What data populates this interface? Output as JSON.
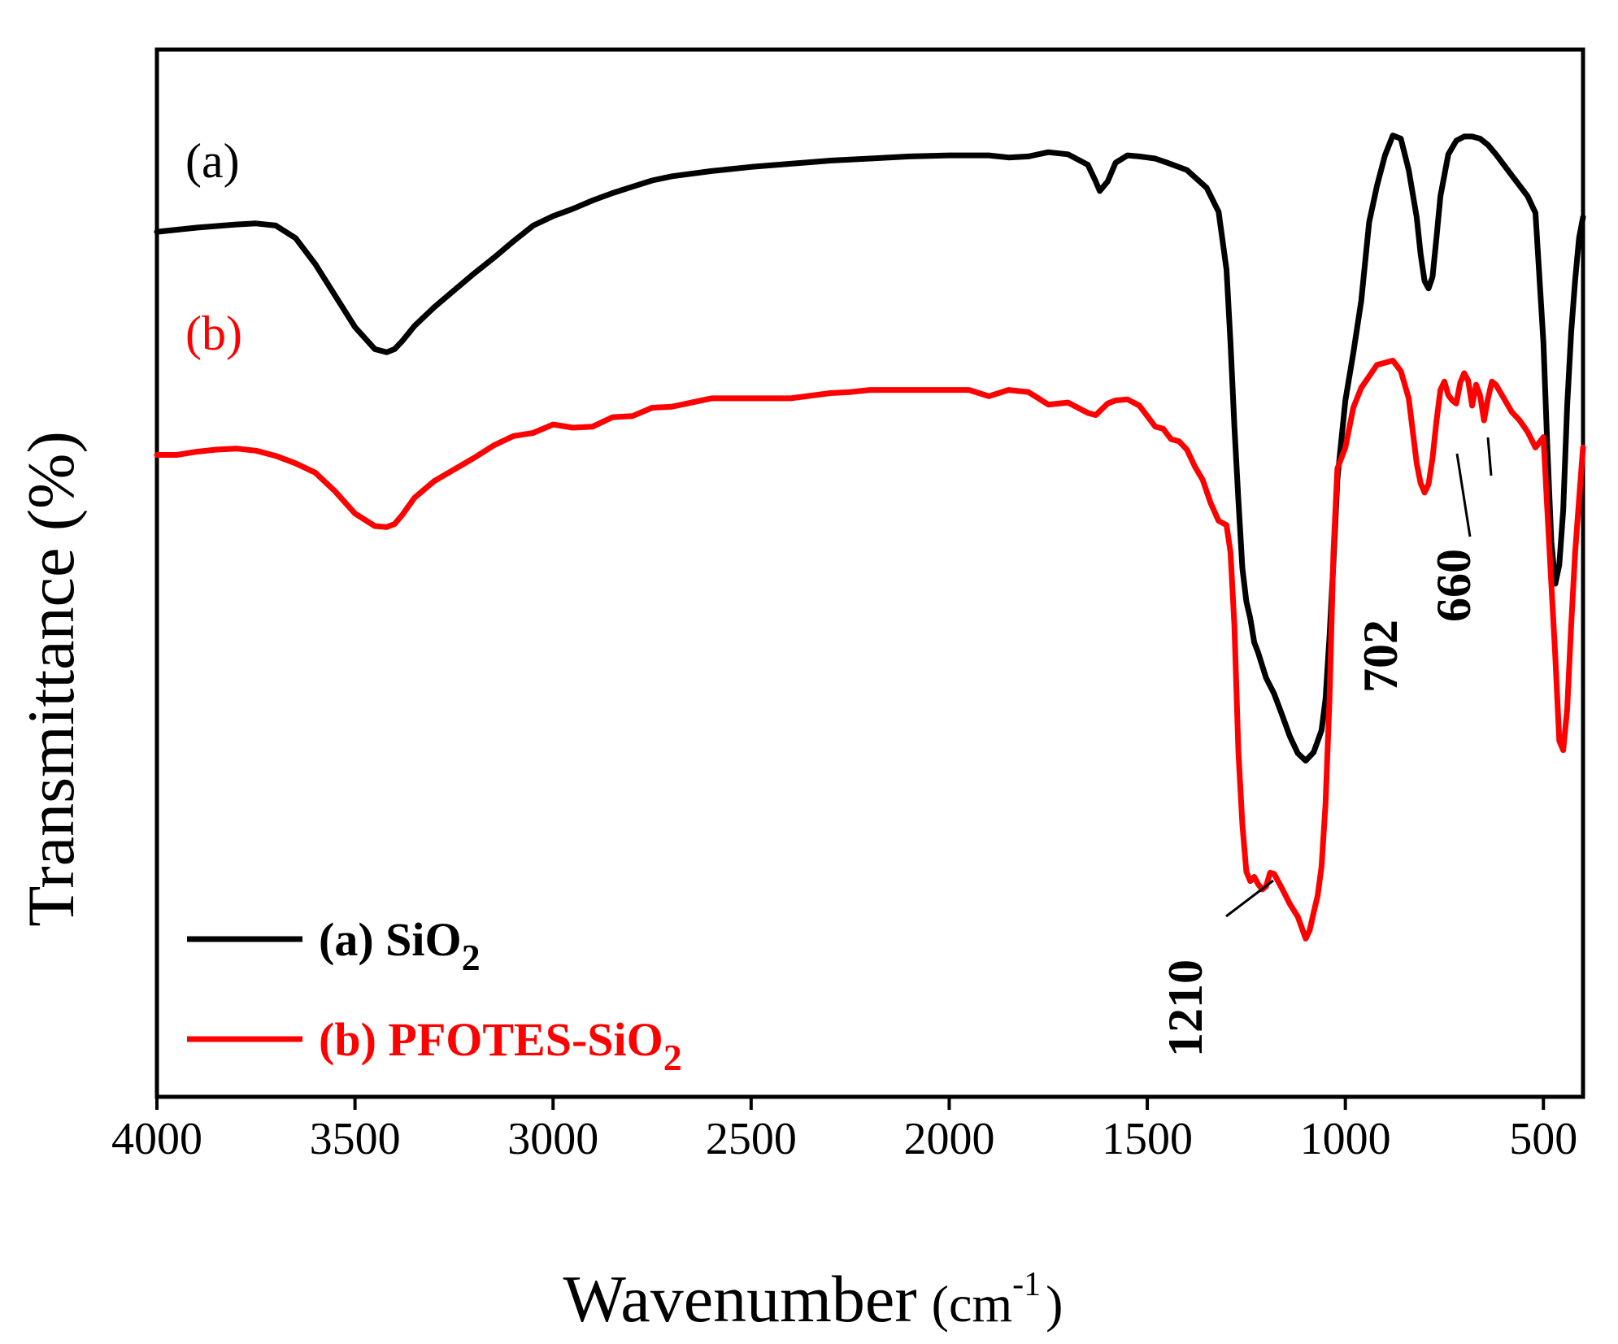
{
  "chart_data": {
    "type": "line",
    "xlabel": "Wavenumber",
    "xlabel_unit_base": "(cm",
    "xlabel_unit_exp": "-1",
    "xlabel_unit_close": ")",
    "ylabel": "Transmittance (%)",
    "xlim": [
      4000,
      400
    ],
    "x_reversed": true,
    "y_ticks_shown": false,
    "ylim": [
      0,
      100
    ],
    "x_ticks": [
      4000,
      3500,
      3000,
      2500,
      2000,
      1500,
      1000,
      500
    ],
    "x_tick_labels": [
      "4000",
      "3500",
      "3000",
      "2500",
      "2000",
      "1500",
      "1000",
      "500"
    ],
    "grid": false,
    "legend_position": "bottom-left",
    "curve_tags": [
      {
        "text": "(a)",
        "color": "#000000",
        "series": 0
      },
      {
        "text": "(b)",
        "color": "#ff0000",
        "series": 1
      }
    ],
    "peak_labels": [
      {
        "text": "1210",
        "x": 1210
      },
      {
        "text": "702",
        "x": 702
      },
      {
        "text": "660",
        "x": 660
      }
    ],
    "series": [
      {
        "name": "(a) SiO",
        "name_sub": "2",
        "color": "#000000",
        "x": [
          4000,
          3900,
          3800,
          3750,
          3700,
          3650,
          3600,
          3550,
          3500,
          3450,
          3420,
          3400,
          3380,
          3350,
          3300,
          3250,
          3200,
          3150,
          3100,
          3050,
          3000,
          2950,
          2900,
          2850,
          2800,
          2750,
          2700,
          2600,
          2500,
          2400,
          2300,
          2200,
          2100,
          2000,
          1950,
          1900,
          1850,
          1800,
          1750,
          1700,
          1650,
          1630,
          1620,
          1600,
          1580,
          1550,
          1520,
          1500,
          1480,
          1450,
          1400,
          1350,
          1320,
          1300,
          1290,
          1280,
          1270,
          1260,
          1250,
          1240,
          1230,
          1220,
          1200,
          1180,
          1160,
          1140,
          1120,
          1100,
          1080,
          1060,
          1050,
          1040,
          1030,
          1020,
          1000,
          980,
          960,
          940,
          920,
          900,
          880,
          860,
          840,
          820,
          810,
          800,
          790,
          780,
          770,
          760,
          740,
          720,
          700,
          680,
          660,
          640,
          620,
          600,
          580,
          560,
          540,
          520,
          500,
          490,
          480,
          470,
          460,
          450,
          440,
          430,
          420,
          410,
          400
        ],
        "y": [
          82.6,
          83.0,
          83.3,
          83.4,
          83.2,
          82.0,
          79.5,
          76.5,
          73.5,
          71.4,
          71.1,
          71.4,
          72.2,
          73.6,
          75.4,
          77.0,
          78.6,
          80.1,
          81.7,
          83.2,
          84.1,
          84.8,
          85.6,
          86.3,
          86.9,
          87.5,
          87.9,
          88.4,
          88.8,
          89.1,
          89.4,
          89.6,
          89.8,
          89.9,
          89.9,
          89.9,
          89.7,
          89.8,
          90.2,
          90.0,
          89.0,
          87.4,
          86.5,
          87.4,
          89.2,
          89.9,
          89.8,
          89.7,
          89.6,
          89.2,
          88.5,
          86.8,
          84.5,
          79.0,
          72.0,
          64.0,
          57.0,
          50.5,
          47.3,
          45.7,
          43.4,
          42.4,
          40.0,
          38.5,
          36.5,
          34.4,
          32.8,
          32.1,
          32.9,
          35.0,
          38.0,
          44.0,
          51.0,
          59.0,
          66.5,
          71.0,
          76.0,
          83.5,
          87.0,
          89.9,
          91.8,
          91.5,
          88.5,
          84.0,
          80.5,
          77.9,
          77.2,
          78.3,
          82.0,
          86.0,
          90.0,
          91.3,
          91.7,
          91.7,
          91.5,
          90.9,
          90.0,
          89.0,
          88.0,
          87.0,
          86.0,
          84.4,
          72.0,
          62.0,
          53.0,
          49.0,
          50.8,
          56.0,
          66.0,
          73.0,
          78.0,
          82.0,
          84.0
        ]
      },
      {
        "name": "(b) PFOTES-SiO",
        "name_sub": "2",
        "color": "#ff0000",
        "x": [
          4000,
          3950,
          3900,
          3850,
          3800,
          3750,
          3700,
          3650,
          3600,
          3550,
          3500,
          3450,
          3420,
          3400,
          3380,
          3350,
          3300,
          3250,
          3200,
          3150,
          3100,
          3050,
          3000,
          2950,
          2900,
          2850,
          2800,
          2750,
          2700,
          2600,
          2500,
          2400,
          2300,
          2250,
          2200,
          2100,
          2000,
          1950,
          1900,
          1850,
          1800,
          1750,
          1700,
          1650,
          1630,
          1600,
          1580,
          1550,
          1520,
          1500,
          1480,
          1460,
          1440,
          1420,
          1400,
          1380,
          1360,
          1340,
          1320,
          1300,
          1290,
          1280,
          1270,
          1260,
          1250,
          1240,
          1230,
          1220,
          1210,
          1200,
          1190,
          1180,
          1160,
          1140,
          1120,
          1100,
          1090,
          1080,
          1070,
          1060,
          1050,
          1040,
          1030,
          1020,
          1000,
          980,
          960,
          940,
          920,
          900,
          880,
          860,
          840,
          820,
          810,
          800,
          790,
          780,
          770,
          760,
          750,
          740,
          730,
          720,
          710,
          700,
          690,
          680,
          670,
          660,
          650,
          640,
          630,
          620,
          600,
          580,
          560,
          540,
          520,
          500,
          490,
          480,
          470,
          460,
          450,
          440,
          430,
          420,
          410,
          400
        ],
        "y": [
          61.3,
          61.3,
          61.6,
          61.8,
          61.9,
          61.7,
          61.2,
          60.5,
          59.6,
          57.8,
          55.7,
          54.5,
          54.4,
          54.7,
          55.6,
          57.2,
          58.8,
          59.9,
          61.0,
          62.2,
          63.1,
          63.4,
          64.2,
          63.9,
          64.0,
          64.9,
          65.0,
          65.8,
          65.9,
          66.7,
          66.7,
          66.7,
          67.2,
          67.3,
          67.5,
          67.5,
          67.5,
          67.5,
          66.9,
          67.5,
          67.3,
          66.1,
          66.3,
          65.3,
          65.1,
          66.2,
          66.5,
          66.6,
          66.0,
          65.0,
          64.0,
          63.8,
          62.8,
          62.6,
          61.8,
          60.2,
          58.9,
          56.7,
          55.0,
          54.6,
          52.0,
          45.0,
          33.0,
          26.0,
          21.5,
          20.6,
          21.0,
          20.3,
          19.8,
          20.1,
          21.4,
          21.3,
          19.9,
          18.4,
          17.2,
          15.1,
          15.9,
          17.6,
          19.2,
          22.0,
          28.0,
          38.0,
          52.0,
          60.0,
          62.0,
          65.8,
          67.7,
          68.8,
          69.9,
          70.1,
          70.3,
          69.3,
          66.7,
          60.5,
          58.6,
          57.7,
          58.5,
          61.0,
          64.5,
          67.5,
          68.3,
          67.0,
          66.5,
          66.2,
          68.2,
          69.1,
          68.4,
          66.0,
          68.0,
          67.0,
          64.6,
          66.7,
          68.3,
          68.0,
          66.7,
          65.4,
          64.6,
          63.5,
          62.0,
          63.0,
          56.0,
          49.0,
          42.0,
          34.0,
          33.1,
          37.0,
          45.0,
          52.0,
          57.0,
          62.0
        ]
      }
    ]
  }
}
